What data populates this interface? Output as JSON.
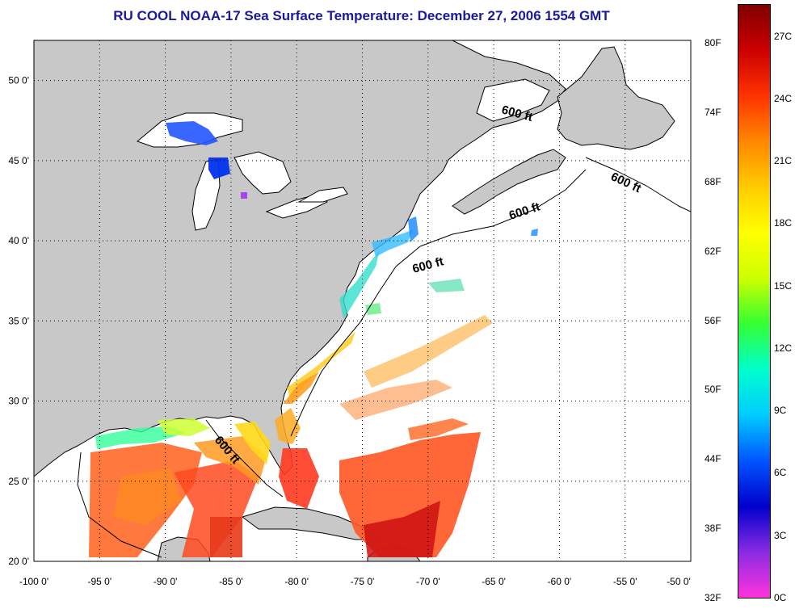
{
  "title": "RU COOL  NOAA-17  Sea Surface Temperature:  December 27, 2006 1554 GMT",
  "longitude_labels": [
    "-100 0'",
    "-95 0'",
    "-90 0'",
    "-85 0'",
    "-80 0'",
    "-75 0'",
    "-70 0'",
    "-65 0'",
    "-60 0'",
    "-55 0'",
    "-50 0'"
  ],
  "longitudes": [
    -100,
    -95,
    -90,
    -85,
    -80,
    -75,
    -70,
    -65,
    -60,
    -55,
    -50
  ],
  "latitude_labels": [
    "50 0'",
    "45 0'",
    "40 0'",
    "35 0'",
    "30 0'",
    "25 0'",
    "20 0'"
  ],
  "latitudes": [
    50,
    45,
    40,
    35,
    30,
    25,
    20
  ],
  "contour_label": "600 ft",
  "colorbar": {
    "fahrenheit_labels": [
      "80F",
      "74F",
      "68F",
      "62F",
      "56F",
      "50F",
      "44F",
      "38F",
      "32F"
    ],
    "fahrenheit_values": [
      80,
      74,
      68,
      62,
      56,
      50,
      44,
      38,
      32
    ],
    "celsius_labels": [
      "27C",
      "24C",
      "21C",
      "18C",
      "15C",
      "12C",
      "9C",
      "6C",
      "3C",
      "0C"
    ],
    "celsius_values": [
      27,
      24,
      21,
      18,
      15,
      12,
      9,
      6,
      3,
      0
    ],
    "min_c": 0,
    "max_c": 28.5,
    "colors": [
      "#ff33dd",
      "#8a2be2",
      "#0000cc",
      "#0055ff",
      "#00ccff",
      "#00ffcc",
      "#33ff33",
      "#ccff00",
      "#ffff00",
      "#ffcc00",
      "#ff8800",
      "#ff3300",
      "#cc0000",
      "#800000"
    ]
  },
  "colors": {
    "land": "#c8c8c8",
    "ocean": "#ffffff",
    "title": "#1a1a9a"
  }
}
